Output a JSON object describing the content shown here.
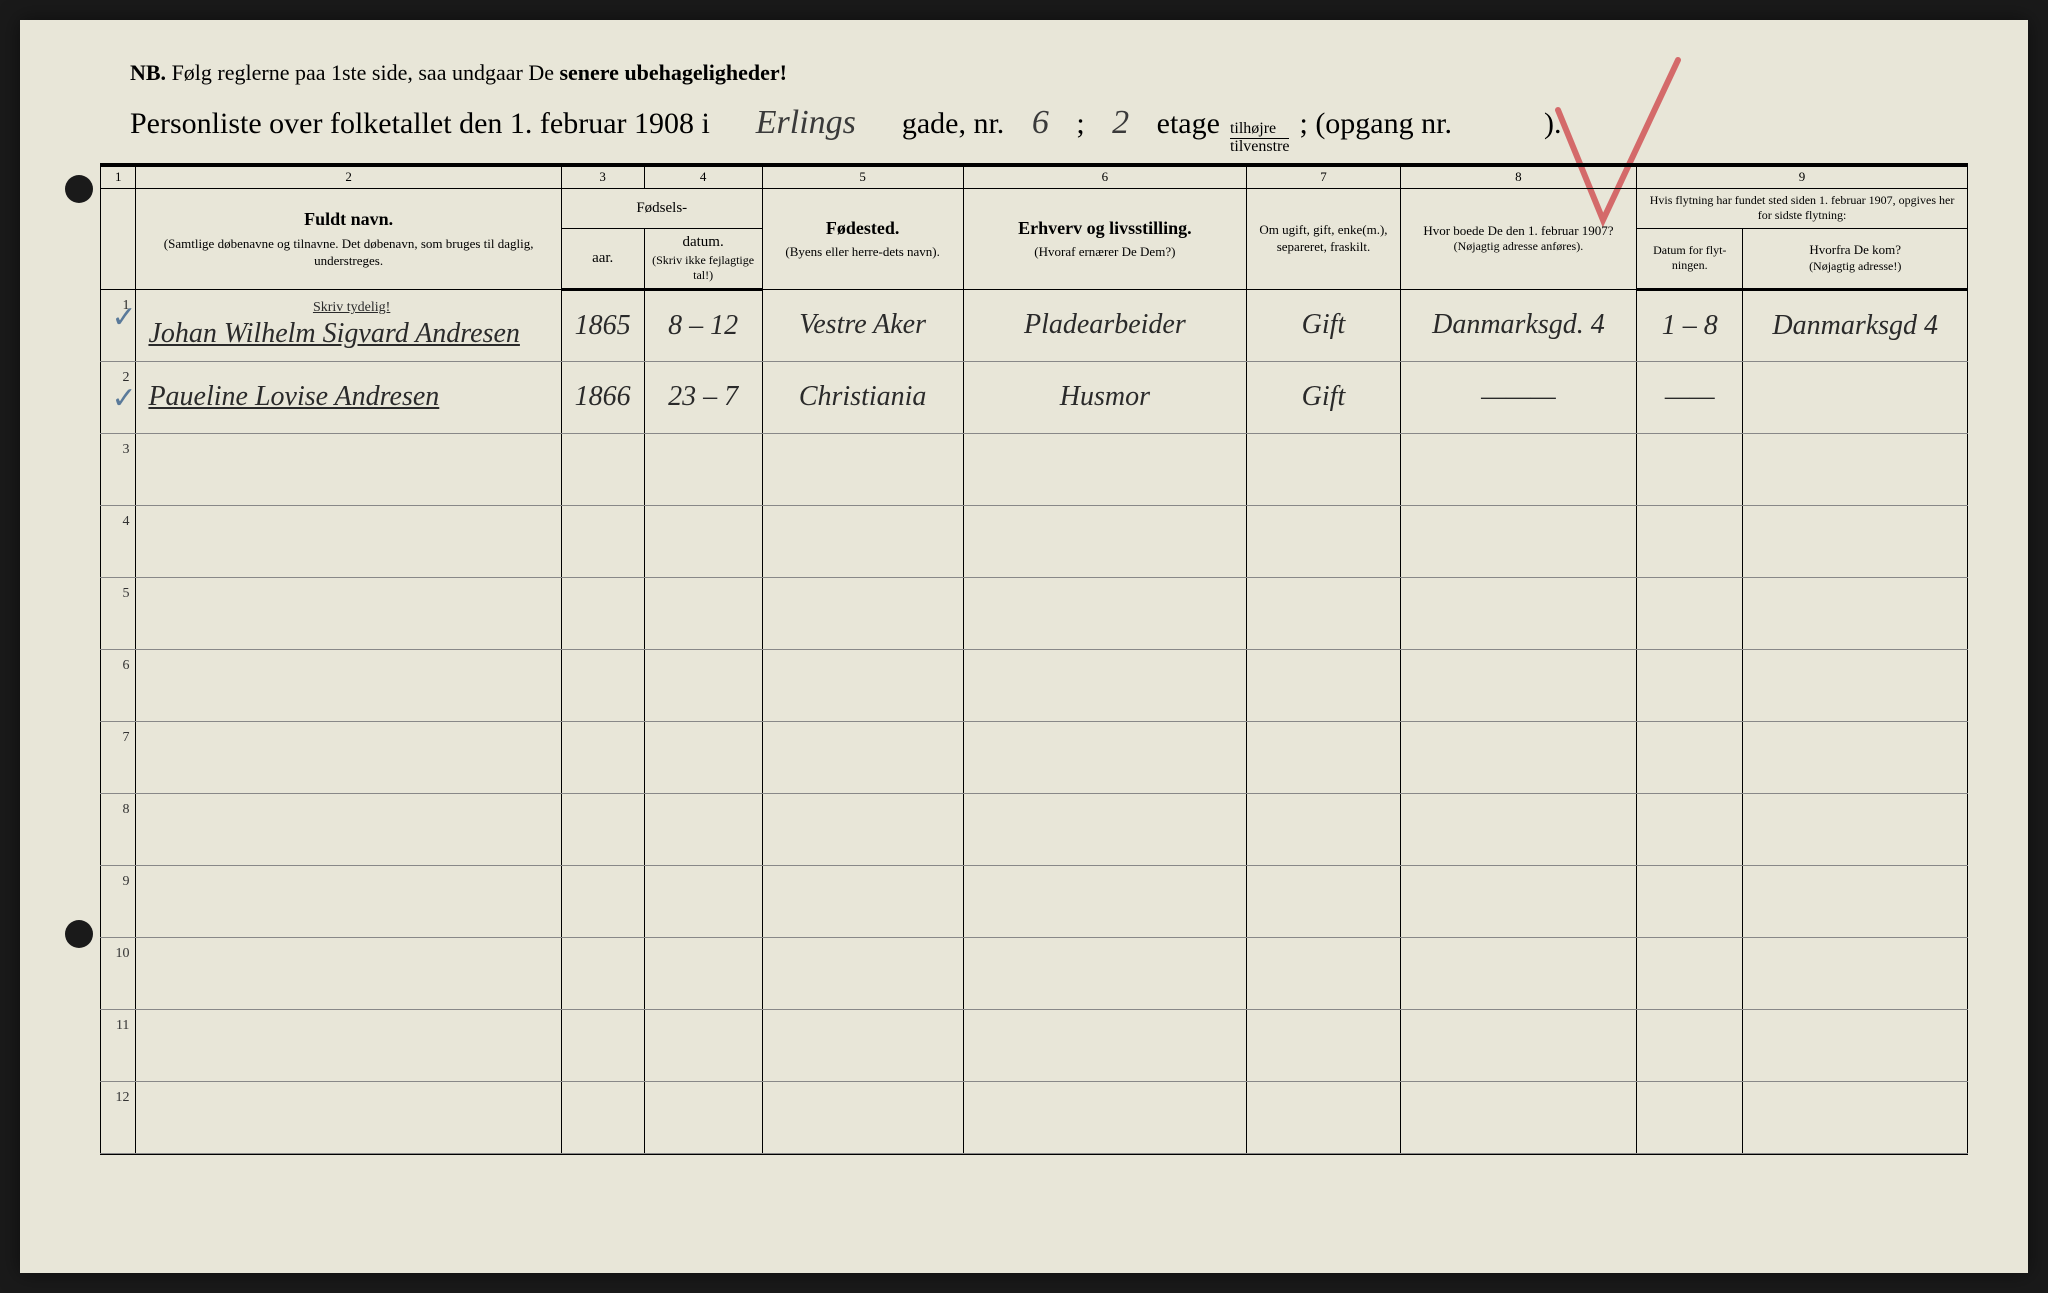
{
  "nb": {
    "prefix": "NB.",
    "text_before": "Følg reglerne paa 1ste side, saa undgaar De",
    "text_bold": "senere ubehageligheder!"
  },
  "title": {
    "prefix": "Personliste over folketallet den 1. februar 1908 i",
    "gade_value": "Erlings",
    "gade_label": "gade, nr.",
    "gade_nr": "6",
    "semicolon": ";",
    "etage_nr": "2",
    "etage_label": "etage",
    "fraction_top": "tilhøjre",
    "fraction_bottom": "tilvenstre",
    "opgang": "; (opgang nr.",
    "opgang_close": ")."
  },
  "column_numbers": [
    "1",
    "2",
    "3",
    "4",
    "5",
    "6",
    "7",
    "8",
    "9"
  ],
  "headers": {
    "col2_main": "Fuldt navn.",
    "col2_sub": "(Samtlige døbenavne og tilnavne. Det døbenavn, som bruges til daglig, understreges.",
    "col34_group": "Fødsels-",
    "col3": "aar.",
    "col4": "datum.",
    "col34_note": "(Skriv ikke fejlagtige tal!)",
    "col5_main": "Fødested.",
    "col5_sub": "(Byens eller herre-dets navn).",
    "col6_main": "Erhverv og livsstilling.",
    "col6_sub": "(Hvoraf ernærer De Dem?)",
    "col7": "Om ugift, gift, enke(m.), separeret, fraskilt.",
    "col8_main": "Hvor boede De den 1. februar 1907?",
    "col8_sub": "(Nøjagtig adresse anføres).",
    "col9_top": "Hvis flytning har fundet sted siden 1. februar 1907, opgives her for sidste flytning:",
    "col9a": "Datum for flyt-ningen.",
    "col9b_main": "Hvorfra De kom?",
    "col9b_sub": "(Nøjagtig adresse!)"
  },
  "skriv_tydelig": "Skriv tydelig!",
  "rows": [
    {
      "num": "1",
      "name": "Johan Wilhelm Sigvard Andresen",
      "year": "1865",
      "date": "8 – 12",
      "birthplace": "Vestre Aker",
      "occupation": "Pladearbeider",
      "marital": "Gift",
      "address1907": "Danmarksgd. 4",
      "move_date": "1 – 8",
      "from_where": "Danmarksgd 4",
      "has_check": true
    },
    {
      "num": "2",
      "name": "Paueline Lovise Andresen",
      "year": "1866",
      "date": "23 – 7",
      "birthplace": "Christiania",
      "occupation": "Husmor",
      "marital": "Gift",
      "address1907": "———",
      "move_date": "——",
      "from_where": "",
      "has_check": true
    }
  ],
  "empty_rows": [
    "3",
    "4",
    "5",
    "6",
    "7",
    "8",
    "9",
    "10",
    "11",
    "12"
  ]
}
